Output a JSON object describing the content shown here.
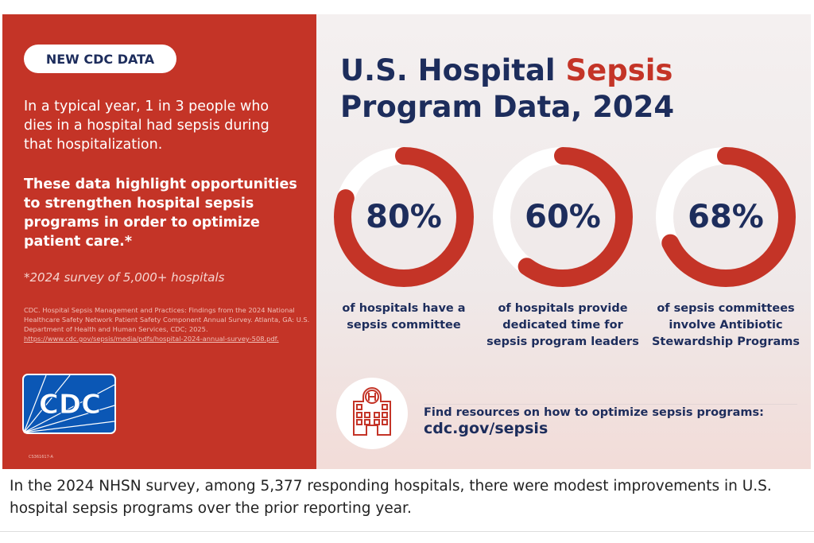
{
  "left": {
    "badge": "NEW CDC DATA",
    "intro": "In a typical year, 1 in 3 people who dies in a hospital had sepsis during that hospitalization.",
    "highlight": "These data highlight opportunities to strengthen hospital sepsis programs in order to optimize patient care.*",
    "survey_note": "*2024 survey of 5,000+ hospitals",
    "citation": "CDC. Hospital Sepsis Management and Practices: Findings from the 2024 National Healthcare Safety Network Patient Safety Component Annual Survey. Atlanta, GA: U.S. Department of Health and Human Services, CDC; 2025.",
    "citation_link": "https://www.cdc.gov/sepsis/media/pdfs/hospital-2024-annual-survey-508.pdf.",
    "logo_text": "CDC",
    "code": "CS361617-A"
  },
  "right": {
    "title_part1": "U.S. Hospital ",
    "title_accent": "Sepsis",
    "title_part2": " Program Data, 2024",
    "stats": [
      {
        "value": 80,
        "label": "80%",
        "desc": "of hospitals have a sepsis committee"
      },
      {
        "value": 60,
        "label": "60%",
        "desc": "of hospitals provide dedicated time for sepsis program leaders"
      },
      {
        "value": 68,
        "label": "68%",
        "desc": "of sepsis committees involve Antibiotic Stewardship Programs"
      }
    ],
    "find_text": "Find resources on how to optimize sepsis programs:",
    "url": "cdc.gov/sepsis",
    "icon": "hospital-icon"
  },
  "caption": "In the 2024 NHSN survey, among 5,377 responding hospitals, there were modest improvements in U.S. hospital sepsis programs over the prior reporting year.",
  "colors": {
    "red": "#c43427",
    "navy": "#1d2d5c",
    "cdc_blue": "#0b57b5"
  }
}
